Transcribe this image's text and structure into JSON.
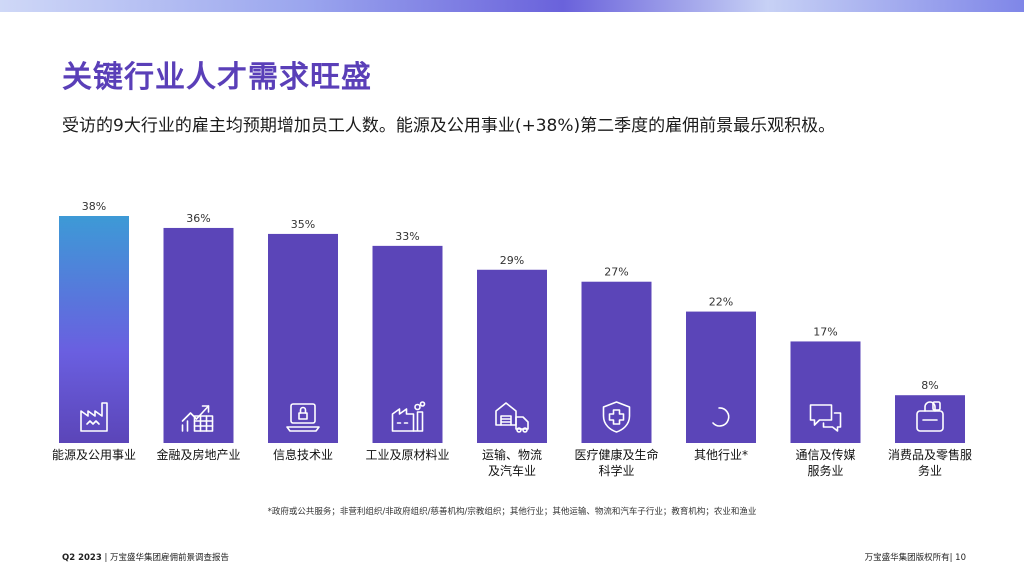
{
  "header": {
    "title": "关键行业人才需求旺盛",
    "subtitle": "受访的9大行业的雇主均预期增加员工人数。能源及公用事业(+38%)第二季度的雇佣前景最乐观积极。"
  },
  "chart_data": {
    "type": "bar",
    "categories": [
      [
        "能源及公用事业"
      ],
      [
        "金融及房地产业"
      ],
      [
        "信息技术业"
      ],
      [
        "工业及原材料业"
      ],
      [
        "运输、物流",
        "及汽车业"
      ],
      [
        "医疗健康及生命",
        "科学业"
      ],
      [
        "其他行业*"
      ],
      [
        "通信及传媒",
        "服务业"
      ],
      [
        "消费品及零售服",
        "务业"
      ]
    ],
    "values": [
      38,
      36,
      35,
      33,
      29,
      27,
      22,
      17,
      8
    ],
    "value_labels": [
      "38%",
      "36%",
      "35%",
      "33%",
      "29%",
      "27%",
      "22%",
      "17%",
      "8%"
    ],
    "icons": [
      "factory-icon",
      "finance-chart-icon",
      "laptop-lock-icon",
      "industrial-plant-icon",
      "delivery-truck-icon",
      "medical-shield-icon",
      "loading-spinner-icon",
      "chat-bubbles-icon",
      "shopping-bag-icon"
    ],
    "ylim": [
      0,
      38
    ],
    "colors": {
      "bar": "#5b45b8",
      "highlight_top": "#3d9ad6",
      "highlight_bottom": "#6a5fe0",
      "icon": "#ffffff"
    }
  },
  "footnote": "*政府或公共服务；非营利组织/非政府组织/慈善机构/宗教组织；其他行业；其他运输、物流和汽车子行业；教育机构；农业和渔业",
  "footer": {
    "left_bold": "Q2 2023",
    "left_text": "| 万宝盛华集团雇佣前景调查报告",
    "right_text": "万宝盛华集团版权所有|",
    "page_number": "10"
  }
}
